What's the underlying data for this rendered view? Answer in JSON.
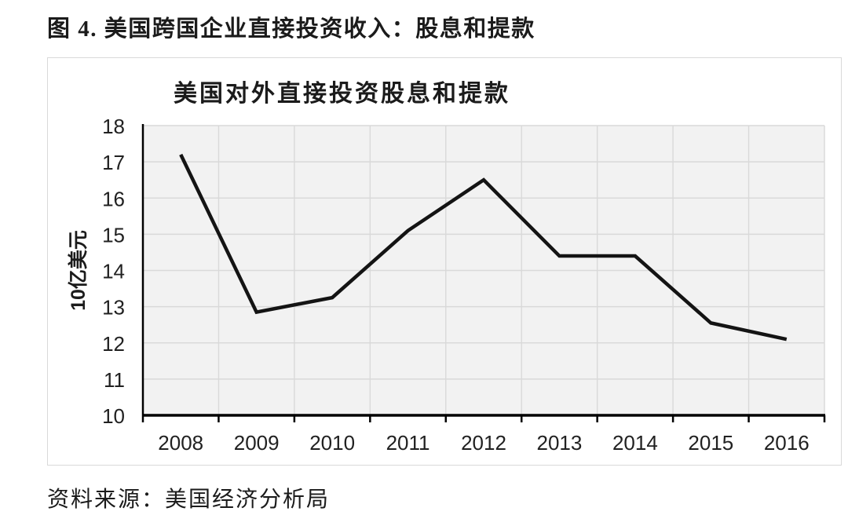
{
  "figure": {
    "title": "图 4. 美国跨国企业直接投资收入：股息和提款"
  },
  "chart_data": {
    "type": "line",
    "title": "美国对外直接投资股息和提款",
    "categories": [
      "2008",
      "2009",
      "2010",
      "2011",
      "2012",
      "2013",
      "2014",
      "2015",
      "2016"
    ],
    "values": [
      17.2,
      12.85,
      13.25,
      15.1,
      16.5,
      14.4,
      14.4,
      12.55,
      12.1
    ],
    "xlabel": "",
    "ylabel": "10亿美元",
    "ylim": [
      10,
      18
    ],
    "yticks": [
      10,
      11,
      12,
      13,
      14,
      15,
      16,
      17,
      18
    ],
    "grid": true,
    "legend": "none",
    "line_color": "#141414",
    "plot_bg": "#f2f2f2",
    "grid_color": "#d9d9d9",
    "axis_color": "#000000",
    "tick_label_color": "#212121"
  },
  "source": {
    "text": "资料来源：美国经济分析局"
  }
}
